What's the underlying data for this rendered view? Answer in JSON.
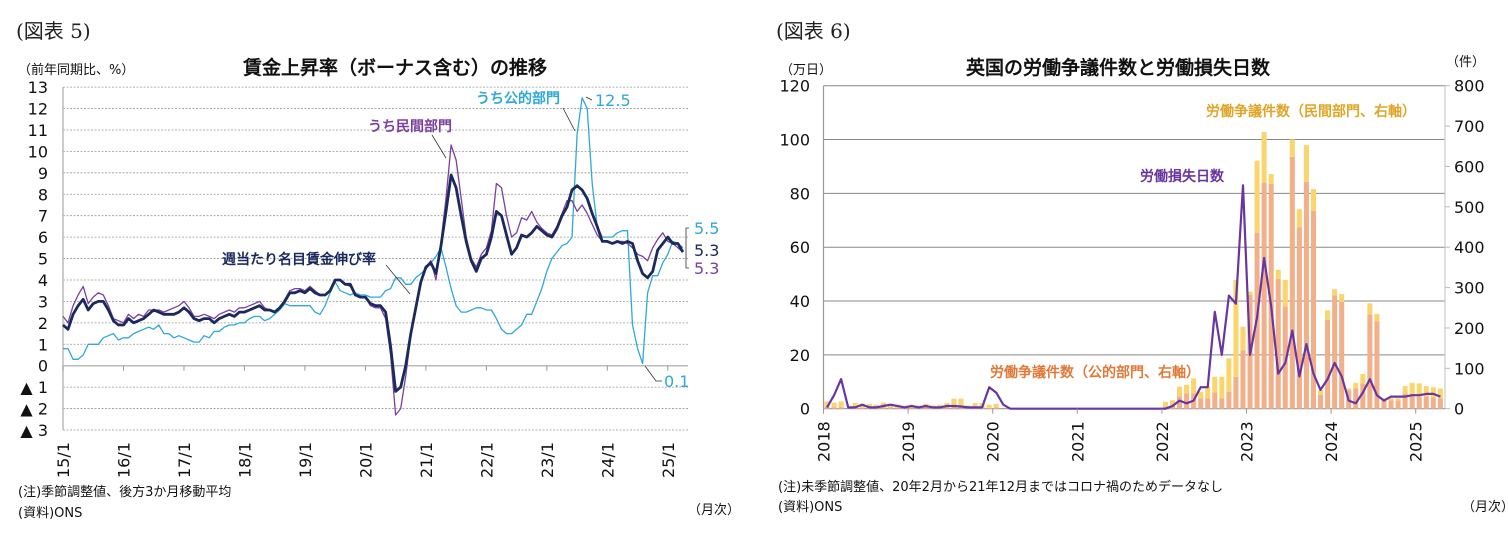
{
  "chart_data": [
    {
      "type": "line",
      "figure_label": "(図表 5)",
      "title": "賃金上昇率（ボーナス含む）の推移",
      "ylabel": "（前年同期比、%）",
      "xlabel": "（月次）",
      "ylim": [
        -3,
        13
      ],
      "y_ticks": [
        13,
        12,
        11,
        10,
        9,
        8,
        7,
        6,
        5,
        4,
        3,
        2,
        1,
        0,
        -1,
        -2,
        -3
      ],
      "y_tick_labels": [
        "13",
        "12",
        "11",
        "10",
        "9",
        "8",
        "7",
        "6",
        "5",
        "4",
        "3",
        "2",
        "1",
        "0",
        "▲ 1",
        "▲ 2",
        "▲ 3"
      ],
      "x_tick_labels": [
        "15/1",
        "16/1",
        "17/1",
        "18/1",
        "19/1",
        "20/1",
        "21/1",
        "22/1",
        "23/1",
        "24/1",
        "25/1"
      ],
      "x_start": "2015-01",
      "x_end": "2025-04",
      "frequency": "monthly",
      "grid": true,
      "series": [
        {
          "name": "うち公的部門",
          "color": "#2fa8d8",
          "values": [
            0.8,
            0.8,
            0.3,
            0.3,
            0.5,
            1.0,
            1.0,
            1.0,
            1.3,
            1.4,
            1.5,
            1.2,
            1.3,
            1.3,
            1.5,
            1.6,
            1.7,
            1.8,
            1.7,
            1.9,
            1.5,
            1.5,
            1.3,
            1.4,
            1.3,
            1.2,
            1.1,
            1.1,
            1.4,
            1.3,
            1.6,
            1.6,
            1.8,
            1.9,
            1.9,
            2.0,
            2.0,
            2.2,
            2.3,
            2.3,
            2.1,
            2.2,
            2.4,
            2.6,
            2.9,
            2.8,
            2.8,
            2.8,
            2.8,
            2.8,
            2.5,
            2.4,
            2.8,
            3.4,
            3.9,
            3.5,
            3.4,
            3.3,
            3.4,
            3.3,
            3.3,
            3.2,
            3.2,
            3.2,
            3.5,
            3.6,
            4.1,
            4.1,
            3.8,
            3.8,
            4.1,
            4.3,
            4.5,
            4.8,
            5.1,
            5.5,
            4.6,
            3.6,
            2.8,
            2.5,
            2.5,
            2.6,
            2.7,
            2.7,
            2.6,
            2.6,
            2.2,
            1.7,
            1.5,
            1.5,
            1.7,
            1.9,
            2.4,
            2.4,
            3.0,
            3.6,
            4.4,
            5.0,
            5.3,
            5.6,
            5.7,
            6.0,
            10.8,
            12.5,
            12.0,
            8.5,
            6.5,
            6.0,
            6.0,
            6.0,
            6.2,
            6.3,
            6.3,
            1.9,
            0.8,
            0.1,
            3.4,
            4.2,
            4.2,
            4.8,
            5.2,
            5.8,
            5.7,
            5.5
          ]
        },
        {
          "name": "うち民間部門",
          "color": "#7b3fa0",
          "values": [
            2.3,
            2.0,
            2.8,
            3.3,
            3.7,
            2.9,
            3.2,
            3.4,
            3.3,
            2.8,
            2.2,
            2.1,
            2.0,
            2.4,
            2.2,
            2.4,
            2.3,
            2.6,
            2.6,
            2.6,
            2.5,
            2.6,
            2.7,
            2.8,
            3.0,
            2.7,
            2.3,
            2.3,
            2.4,
            2.3,
            2.2,
            2.4,
            2.5,
            2.6,
            2.5,
            2.7,
            2.7,
            2.8,
            2.9,
            3.0,
            2.7,
            2.6,
            2.5,
            2.7,
            3.1,
            3.5,
            3.6,
            3.6,
            3.5,
            3.7,
            3.5,
            3.3,
            3.3,
            3.5,
            4.0,
            4.0,
            3.8,
            3.7,
            3.3,
            3.2,
            3.2,
            2.8,
            2.7,
            2.7,
            2.2,
            0.5,
            -2.3,
            -2.0,
            -0.5,
            1.4,
            2.7,
            3.9,
            4.6,
            4.9,
            4.0,
            5.8,
            7.8,
            10.3,
            9.6,
            7.8,
            6.0,
            5.0,
            4.6,
            5.2,
            5.5,
            6.3,
            8.5,
            8.3,
            7.0,
            6.0,
            6.2,
            6.9,
            6.8,
            7.2,
            6.7,
            6.4,
            6.2,
            6.1,
            6.5,
            7.1,
            7.7,
            7.7,
            7.2,
            7.5,
            7.1,
            6.6,
            6.1,
            5.8,
            5.8,
            5.7,
            5.8,
            5.8,
            5.7,
            5.5,
            5.2,
            5.1,
            4.9,
            5.5,
            5.9,
            6.2,
            5.8,
            5.7,
            5.5,
            5.3
          ]
        },
        {
          "name": "週当たり名目賃金伸び率",
          "color": "#1b2a5c",
          "values": [
            1.9,
            1.7,
            2.4,
            2.8,
            3.1,
            2.6,
            2.9,
            3.0,
            3.0,
            2.6,
            2.1,
            1.9,
            1.9,
            2.2,
            2.0,
            2.1,
            2.2,
            2.4,
            2.6,
            2.5,
            2.4,
            2.4,
            2.4,
            2.5,
            2.7,
            2.5,
            2.2,
            2.1,
            2.2,
            2.2,
            2.0,
            2.2,
            2.3,
            2.4,
            2.3,
            2.5,
            2.5,
            2.6,
            2.7,
            2.8,
            2.6,
            2.6,
            2.5,
            2.7,
            3.0,
            3.4,
            3.4,
            3.5,
            3.4,
            3.6,
            3.4,
            3.3,
            3.3,
            3.5,
            4.0,
            4.0,
            3.8,
            3.8,
            3.3,
            3.2,
            3.2,
            2.9,
            2.8,
            2.8,
            2.5,
            0.9,
            -1.2,
            -1.0,
            0.0,
            1.5,
            2.7,
            3.9,
            4.6,
            4.8,
            4.3,
            5.6,
            7.2,
            8.9,
            8.3,
            7.0,
            5.8,
            4.9,
            4.4,
            5.0,
            5.2,
            6.0,
            7.2,
            7.0,
            6.1,
            5.2,
            5.5,
            6.1,
            6.0,
            6.2,
            6.5,
            6.3,
            6.1,
            6.0,
            6.4,
            7.0,
            7.4,
            8.2,
            8.4,
            8.2,
            7.8,
            7.1,
            6.5,
            5.8,
            5.8,
            5.7,
            5.8,
            5.7,
            5.8,
            5.7,
            4.9,
            4.3,
            4.1,
            4.4,
            5.4,
            5.7,
            6.0,
            5.7,
            5.7,
            5.3
          ]
        }
      ],
      "annotations": {
        "public_label": "うち公的部門",
        "private_label": "うち民間部門",
        "total_label": "週当たり名目賃金伸び率",
        "public_peak": "12.5",
        "public_last": "5.5",
        "total_last": "5.3",
        "private_last": "5.3",
        "public_trough": "0.1"
      },
      "notes": [
        "(注)季節調整値、後方3か月移動平均",
        "(資料)ONS"
      ]
    },
    {
      "type": "bar+line",
      "figure_label": "(図表 6)",
      "title": "英国の労働争議件数と労働損失日数",
      "ylabel_left": "（万日）",
      "ylabel_right": "（件）",
      "xlabel": "（月次）",
      "ylim_left": [
        0,
        120
      ],
      "ylim_right": [
        0,
        800
      ],
      "y_ticks_left": [
        "0",
        "20",
        "40",
        "60",
        "80",
        "100",
        "120"
      ],
      "y_ticks_right": [
        "0",
        "100",
        "200",
        "300",
        "400",
        "500",
        "600",
        "700",
        "800"
      ],
      "x_tick_labels": [
        "2018",
        "2019",
        "2020",
        "2021",
        "2022",
        "2023",
        "2024",
        "2025"
      ],
      "x_start": "2018-01",
      "x_end": "2025-04",
      "frequency": "monthly",
      "grid": true,
      "series": [
        {
          "name": "労働争議件数（公的部門、右軸）",
          "type": "bar",
          "axis": "right",
          "stack": "disputes",
          "color": "#f2b08a",
          "values": [
            5,
            3,
            4,
            0,
            3,
            2,
            2,
            2,
            4,
            3,
            2,
            2,
            2,
            2,
            3,
            2,
            2,
            3,
            6,
            6,
            2,
            3,
            3,
            2,
            3,
            null,
            null,
            null,
            null,
            null,
            null,
            null,
            null,
            null,
            null,
            null,
            null,
            null,
            null,
            null,
            null,
            null,
            null,
            null,
            null,
            null,
            null,
            null,
            5,
            8,
            30,
            38,
            38,
            26,
            26,
            40,
            26,
            42,
            79,
            145,
            282,
            436,
            560,
            557,
            322,
            253,
            624,
            449,
            562,
            490,
            34,
            220,
            281,
            265,
            46,
            50,
            63,
            234,
            216,
            21,
            21,
            21,
            38,
            34,
            30,
            30,
            28,
            26
          ]
        },
        {
          "name": "労働争議件数（民間部門、右軸）",
          "type": "bar",
          "axis": "right",
          "stack": "disputes",
          "color": "#fad56e",
          "values": [
            13,
            12,
            14,
            0,
            11,
            10,
            10,
            8,
            11,
            9,
            8,
            6,
            8,
            6,
            9,
            6,
            8,
            11,
            19,
            19,
            6,
            11,
            11,
            8,
            9,
            null,
            null,
            null,
            null,
            null,
            null,
            null,
            null,
            null,
            null,
            null,
            null,
            null,
            null,
            null,
            null,
            null,
            null,
            null,
            null,
            null,
            null,
            null,
            12,
            13,
            25,
            21,
            37,
            16,
            29,
            39,
            53,
            83,
            240,
            58,
            8,
            178,
            125,
            24,
            22,
            66,
            43,
            45,
            91,
            54,
            12,
            24,
            15,
            19,
            4,
            14,
            23,
            27,
            19,
            5,
            5,
            5,
            18,
            30,
            33,
            26,
            25,
            24
          ]
        },
        {
          "name": "労働損失日数",
          "type": "line",
          "axis": "left",
          "color": "#6a35a0",
          "values": [
            0.5,
            5,
            11,
            0.5,
            0.5,
            1.5,
            0.5,
            0.5,
            1,
            1.5,
            1,
            0.5,
            1,
            0.5,
            1,
            0.5,
            0.5,
            1,
            1,
            0.8,
            0.5,
            0.5,
            0.5,
            8,
            6,
            1.5,
            0,
            0,
            0,
            0,
            0,
            0,
            0,
            0,
            0,
            0,
            0,
            0,
            0,
            0,
            0,
            0,
            0,
            0,
            0,
            0,
            0,
            0,
            0,
            1,
            3,
            2,
            3,
            8,
            8,
            36,
            20,
            42,
            39,
            83,
            20,
            34,
            56,
            38,
            13,
            17,
            29,
            12,
            24,
            13,
            7,
            11,
            17,
            12,
            3,
            2,
            6,
            11,
            5,
            3,
            4.5,
            4.5,
            4.5,
            5,
            5,
            5.5,
            5.5,
            4.5
          ]
        }
      ],
      "notes": [
        "(注)未季節調整値、20年2月から21年12月まではコロナ禍のためデータなし",
        "(資料)ONS"
      ]
    }
  ]
}
